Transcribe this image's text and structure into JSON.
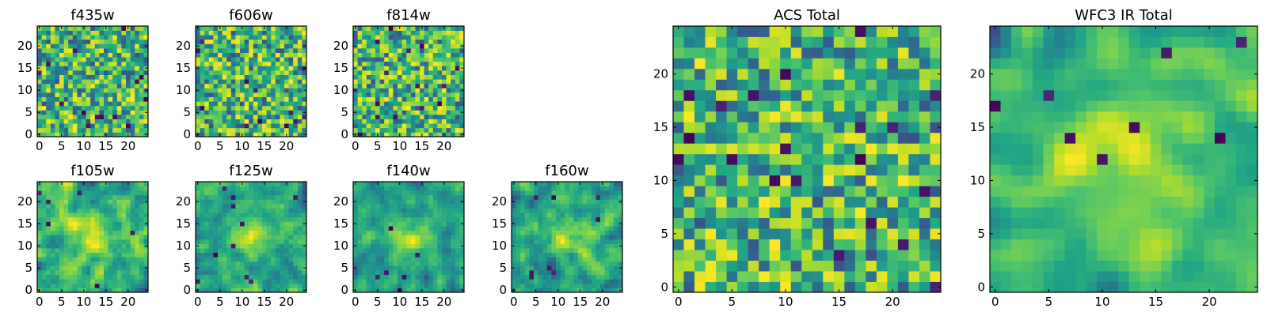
{
  "chart_data": [
    {
      "type": "heatmap",
      "title": "f435w",
      "xlim": [
        -0.5,
        24.5
      ],
      "ylim": [
        -0.5,
        24.5
      ],
      "xticks": [
        0,
        5,
        10,
        15,
        20
      ],
      "yticks": [
        0,
        5,
        10,
        15,
        20
      ],
      "grid_size": [
        25,
        25
      ],
      "colormap": "viridis",
      "seed": 11,
      "smooth": 0,
      "blobs": 0,
      "dark_count": 14
    },
    {
      "type": "heatmap",
      "title": "f606w",
      "xlim": [
        -0.5,
        24.5
      ],
      "ylim": [
        -0.5,
        24.5
      ],
      "xticks": [
        0,
        5,
        10,
        15,
        20
      ],
      "yticks": [
        0,
        5,
        10,
        15,
        20
      ],
      "grid_size": [
        25,
        25
      ],
      "colormap": "viridis",
      "seed": 23,
      "smooth": 0,
      "blobs": 0,
      "dark_count": 12
    },
    {
      "type": "heatmap",
      "title": "f814w",
      "xlim": [
        -0.5,
        24.5
      ],
      "ylim": [
        -0.5,
        24.5
      ],
      "xticks": [
        0,
        5,
        10,
        15,
        20
      ],
      "yticks": [
        0,
        5,
        10,
        15,
        20
      ],
      "grid_size": [
        25,
        25
      ],
      "colormap": "viridis",
      "seed": 37,
      "smooth": 0,
      "blobs": 0,
      "dark_count": 14
    },
    {
      "type": "heatmap",
      "title": "f105w",
      "xlim": [
        -0.5,
        24.5
      ],
      "ylim": [
        -0.5,
        24.5
      ],
      "xticks": [
        0,
        5,
        10,
        15,
        20
      ],
      "yticks": [
        0,
        5,
        10,
        15,
        20
      ],
      "grid_size": [
        25,
        25
      ],
      "colormap": "viridis",
      "seed": 41,
      "smooth": 1,
      "blobs": 1,
      "dark_count": 6
    },
    {
      "type": "heatmap",
      "title": "f125w",
      "xlim": [
        -0.5,
        24.5
      ],
      "ylim": [
        -0.5,
        24.5
      ],
      "xticks": [
        0,
        5,
        10,
        15,
        20
      ],
      "yticks": [
        0,
        5,
        10,
        15,
        20
      ],
      "grid_size": [
        25,
        25
      ],
      "colormap": "viridis",
      "seed": 53,
      "smooth": 1,
      "blobs": 1,
      "dark_count": 10
    },
    {
      "type": "heatmap",
      "title": "f140w",
      "xlim": [
        -0.5,
        24.5
      ],
      "ylim": [
        -0.5,
        24.5
      ],
      "xticks": [
        0,
        5,
        10,
        15,
        20
      ],
      "yticks": [
        0,
        5,
        10,
        15,
        20
      ],
      "grid_size": [
        25,
        25
      ],
      "colormap": "viridis",
      "seed": 67,
      "smooth": 1,
      "blobs": 1,
      "dark_count": 6
    },
    {
      "type": "heatmap",
      "title": "f160w",
      "xlim": [
        -0.5,
        24.5
      ],
      "ylim": [
        -0.5,
        24.5
      ],
      "xticks": [
        0,
        5,
        10,
        15,
        20
      ],
      "yticks": [
        0,
        5,
        10,
        15,
        20
      ],
      "grid_size": [
        25,
        25
      ],
      "colormap": "viridis",
      "seed": 79,
      "smooth": 1,
      "blobs": 1,
      "dark_count": 8
    },
    {
      "type": "heatmap",
      "title": "ACS Total",
      "xlim": [
        -0.5,
        24.5
      ],
      "ylim": [
        -0.5,
        24.5
      ],
      "xticks": [
        0,
        5,
        10,
        15,
        20
      ],
      "yticks": [
        0,
        5,
        10,
        15,
        20
      ],
      "grid_size": [
        25,
        25
      ],
      "colormap": "viridis",
      "seed": 91,
      "smooth": 0,
      "blobs": 0,
      "dark_count": 20
    },
    {
      "type": "heatmap",
      "title": "WFC3 IR Total",
      "xlim": [
        -0.5,
        24.5
      ],
      "ylim": [
        -0.5,
        24.5
      ],
      "xticks": [
        0,
        5,
        10,
        15,
        20
      ],
      "yticks": [
        0,
        5,
        10,
        15,
        20
      ],
      "grid_size": [
        25,
        25
      ],
      "colormap": "viridis",
      "seed": 103,
      "smooth": 2,
      "blobs": 1,
      "dark_count": 8
    }
  ]
}
